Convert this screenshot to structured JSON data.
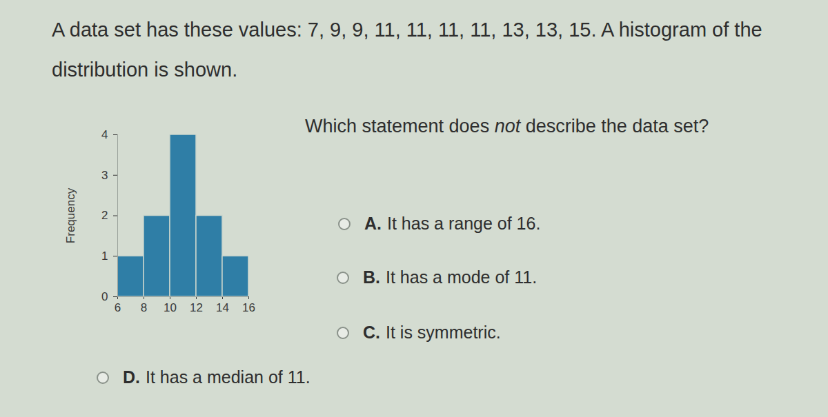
{
  "intro": "A data set has these values: 7, 9, 9, 11, 11, 11, 11, 13, 13, 15. A histogram of the distribution is shown.",
  "question_parts": [
    {
      "text": "Which statement does "
    },
    {
      "text": "not",
      "italic": true
    },
    {
      "text": " describe the data set?"
    }
  ],
  "options": [
    {
      "letter": "A.",
      "text": "It has a range of 16."
    },
    {
      "letter": "B.",
      "text": "It has a mode of 11."
    },
    {
      "letter": "C.",
      "text": "It is symmetric."
    },
    {
      "letter": "D.",
      "text": "It has a median of 11."
    }
  ],
  "chart_data": {
    "type": "histogram",
    "ylabel": "Frequency",
    "bins": [
      6,
      8,
      10,
      12,
      14,
      16
    ],
    "values": [
      1,
      2,
      4,
      2,
      1
    ],
    "color": "#2f7ea6",
    "xlim": [
      6,
      16
    ],
    "xticks": [
      6,
      8,
      10,
      12,
      14,
      16
    ],
    "ylim": [
      0,
      4
    ],
    "yticks": [
      0,
      1,
      2,
      3,
      4
    ]
  }
}
